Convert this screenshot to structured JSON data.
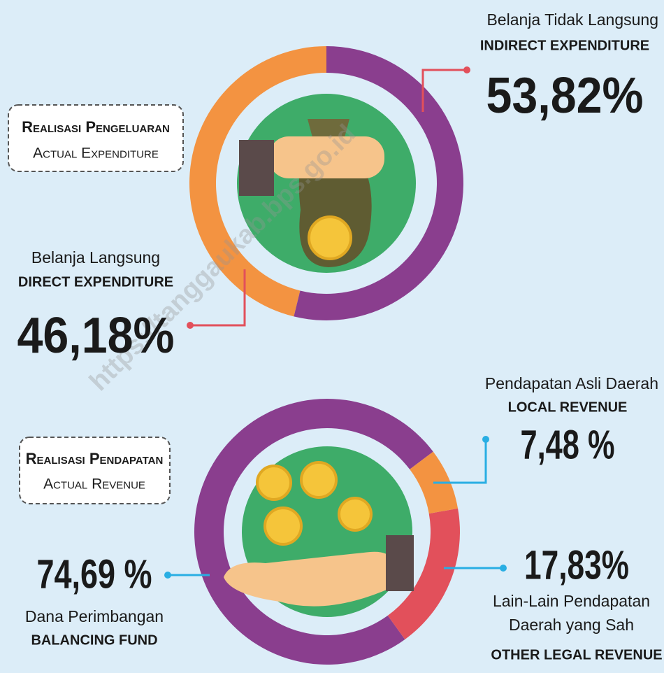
{
  "chart_data": [
    {
      "type": "donut",
      "title": "Realisasi Pengeluaran",
      "subtitle": "Actual Expenditure",
      "categories": [
        "Belanja Tidak Langsung",
        "Belanja Langsung"
      ],
      "categories_en": [
        "INDIRECT EXPENDITURE",
        "DIRECT EXPENDITURE"
      ],
      "values": [
        53.82,
        46.18
      ],
      "value_labels": [
        "53,82%",
        "46,18%"
      ],
      "colors": [
        "#8a3e8e",
        "#f39341"
      ]
    },
    {
      "type": "donut",
      "title": "Realisasi Pendapatan",
      "subtitle": "Actual Revenue",
      "categories": [
        "Pendapatan Asli Daerah",
        "Lain-Lain Pendapatan Daerah yang Sah",
        "Dana Perimbangan"
      ],
      "categories_en": [
        "LOCAL REVENUE",
        "OTHER LEGAL REVENUE",
        "BALANCING FUND"
      ],
      "values": [
        7.48,
        17.83,
        74.69
      ],
      "value_labels": [
        "7,48 %",
        "17,83%",
        "74,69 %"
      ],
      "colors": [
        "#f39341",
        "#e2505b",
        "#8a3e8e"
      ]
    }
  ],
  "watermark": "https://tanggaukab.bps.go.id"
}
